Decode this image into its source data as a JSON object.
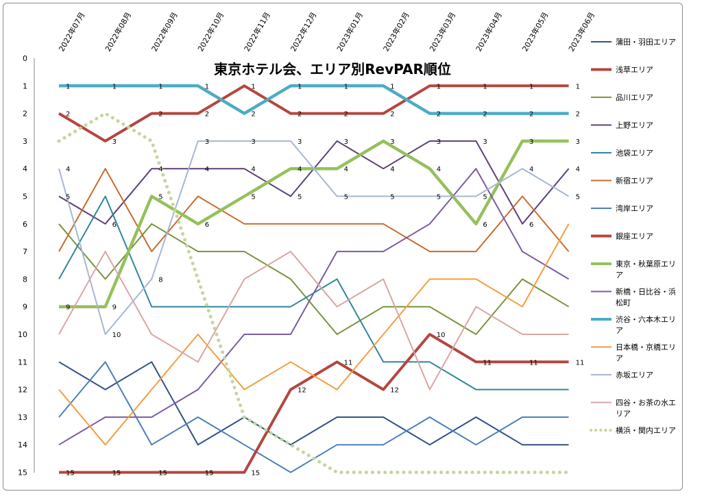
{
  "chart_data": {
    "type": "line",
    "title": "東京ホテル会、エリア別RevPAR順位",
    "categories": [
      "2022年07月",
      "2022年08月",
      "2022年09月",
      "2022年10月",
      "2022年11月",
      "2022年12月",
      "2023年01月",
      "2023年02月",
      "2023年03月",
      "2023年04月",
      "2023年05月",
      "2023年06月"
    ],
    "y_ticks": [
      0,
      1,
      2,
      3,
      4,
      5,
      6,
      7,
      8,
      9,
      10,
      11,
      12,
      13,
      14,
      15
    ],
    "ylim": [
      0,
      15
    ],
    "y_reversed": true,
    "grid": false,
    "legend_position": "right",
    "series": [
      {
        "name": "蒲田・羽田エリア",
        "color": "#2e4f87",
        "width": 2,
        "style": "solid",
        "values": [
          11,
          12,
          11,
          14,
          13,
          14,
          13,
          13,
          14,
          13,
          14,
          14
        ],
        "labels": []
      },
      {
        "name": "浅草エリア",
        "color": "#b5453f",
        "width": 4,
        "style": "solid",
        "values": [
          2,
          3,
          2,
          2,
          1,
          2,
          2,
          2,
          1,
          1,
          1,
          1
        ],
        "labels": [
          "2",
          "3",
          "2",
          "2",
          "1",
          "2",
          "2",
          "2",
          "1",
          "1",
          "1",
          "1"
        ]
      },
      {
        "name": "品川エリア",
        "color": "#77933c",
        "width": 2,
        "style": "solid",
        "values": [
          6,
          8,
          6,
          7,
          7,
          8,
          10,
          9,
          9,
          10,
          8,
          9
        ],
        "labels": []
      },
      {
        "name": "上野エリア",
        "color": "#5b3f78",
        "width": 2,
        "style": "solid",
        "values": [
          5,
          6,
          4,
          4,
          4,
          5,
          3,
          4,
          3,
          3,
          6,
          4
        ],
        "labels": [
          "5",
          "6",
          "4",
          "4",
          "4",
          "5",
          "3",
          "4",
          "3",
          "3",
          "6",
          "4"
        ]
      },
      {
        "name": "池袋エリア",
        "color": "#31859c",
        "width": 2,
        "style": "solid",
        "values": [
          8,
          5,
          9,
          9,
          9,
          9,
          8,
          11,
          11,
          12,
          12,
          12
        ],
        "labels": []
      },
      {
        "name": "新宿エリア",
        "color": "#c86b2b",
        "width": 2,
        "style": "solid",
        "values": [
          7,
          4,
          7,
          5,
          6,
          6,
          6,
          6,
          7,
          7,
          5,
          7
        ],
        "labels": []
      },
      {
        "name": "湾岸エリア",
        "color": "#4a7ebb",
        "width": 2,
        "style": "solid",
        "values": [
          13,
          11,
          14,
          13,
          14,
          15,
          14,
          14,
          13,
          14,
          13,
          13
        ],
        "labels": []
      },
      {
        "name": "銀座エリア",
        "color": "#b5453f",
        "width": 4,
        "style": "solid",
        "values": [
          15,
          15,
          15,
          15,
          15,
          12,
          11,
          12,
          10,
          11,
          11,
          11
        ],
        "labels": [
          "15",
          "15",
          "15",
          "15",
          "15",
          "12",
          "11",
          "12",
          "10",
          "11",
          "11",
          "11"
        ]
      },
      {
        "name": "東京・秋葉原エリア",
        "color": "#94c15a",
        "width": 4.5,
        "style": "solid",
        "values": [
          9,
          9,
          5,
          6,
          5,
          4,
          4,
          3,
          4,
          6,
          3,
          3
        ],
        "labels": [
          "9",
          "9",
          "5",
          "6",
          "5",
          "4",
          "4",
          "3",
          "4",
          "6",
          "3",
          "3"
        ]
      },
      {
        "name": "新橋・日比谷・浜松町",
        "color": "#7a5ba0",
        "width": 2,
        "style": "solid",
        "values": [
          14,
          13,
          13,
          12,
          10,
          10,
          7,
          7,
          6,
          4,
          7,
          8
        ],
        "labels": []
      },
      {
        "name": "渋谷・六本木エリア",
        "color": "#4bacc6",
        "width": 4.5,
        "style": "solid",
        "values": [
          1,
          1,
          1,
          1,
          2,
          1,
          1,
          1,
          2,
          2,
          2,
          2
        ],
        "labels": [
          "1",
          "1",
          "1",
          "1",
          "2",
          "1",
          "1",
          "1",
          "2",
          "2",
          "2",
          "2"
        ]
      },
      {
        "name": "日本橋・京橋エリア",
        "color": "#f59d3d",
        "width": 2,
        "style": "solid",
        "values": [
          12,
          14,
          12,
          10,
          12,
          11,
          12,
          10,
          8,
          8,
          9,
          6
        ],
        "labels": []
      },
      {
        "name": "赤坂エリア",
        "color": "#a5b6d3",
        "width": 2,
        "style": "solid",
        "values": [
          4,
          10,
          8,
          3,
          3,
          3,
          5,
          5,
          5,
          5,
          4,
          5
        ],
        "labels": [
          "4",
          "10",
          "8",
          "3",
          "3",
          "3",
          "5",
          "5",
          "5",
          "5",
          "4",
          "5"
        ]
      },
      {
        "name": "四谷・お茶の水エリア",
        "color": "#d9a5a3",
        "width": 2,
        "style": "solid",
        "values": [
          10,
          7,
          10,
          11,
          8,
          7,
          9,
          8,
          12,
          9,
          10,
          10
        ],
        "labels": []
      },
      {
        "name": "横浜・関内エリア",
        "color": "#c3d69b",
        "width": 5,
        "style": "dotted",
        "values": [
          3,
          2,
          3,
          8,
          13,
          14,
          15,
          15,
          15,
          15,
          15,
          15
        ],
        "labels": []
      }
    ],
    "legend": [
      {
        "series": 0,
        "lines": [
          "蒲田・羽田エリア"
        ]
      },
      {
        "series": 1,
        "lines": [
          "浅草エリア"
        ]
      },
      {
        "series": 2,
        "lines": [
          "品川エリア"
        ]
      },
      {
        "series": 3,
        "lines": [
          "上野エリア"
        ]
      },
      {
        "series": 4,
        "lines": [
          "池袋エリア"
        ]
      },
      {
        "series": 5,
        "lines": [
          "新宿エリア"
        ]
      },
      {
        "series": 6,
        "lines": [
          "湾岸エリア"
        ]
      },
      {
        "series": 7,
        "lines": [
          "銀座エリア"
        ]
      },
      {
        "series": 8,
        "lines": [
          "東京・秋葉原エリ",
          "ア"
        ]
      },
      {
        "series": 9,
        "lines": [
          "新橋・日比谷・浜",
          "松町"
        ]
      },
      {
        "series": 10,
        "lines": [
          "渋谷・六本木エリ",
          "ア"
        ]
      },
      {
        "series": 11,
        "lines": [
          "日本橋・京橋エリ",
          "ア"
        ]
      },
      {
        "series": 12,
        "lines": [
          "赤坂エリア"
        ]
      },
      {
        "series": 13,
        "lines": [
          "四谷・お茶の水エ",
          "リア"
        ]
      },
      {
        "series": 14,
        "lines": [
          "横浜・関内エリア"
        ]
      }
    ]
  }
}
